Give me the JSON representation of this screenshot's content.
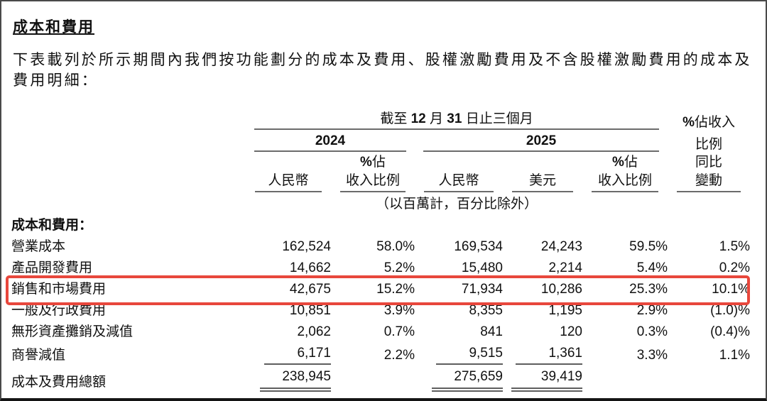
{
  "page": {
    "title": "成本和費用",
    "intro": "下表載列於所示期間內我們按功能劃分的成本及費用、股權激勵費用及不含股權激勵費用的成本及費用明細："
  },
  "table": {
    "spanner": {
      "prefix": "截至 ",
      "month": "12",
      "mid": " 月 ",
      "day": "31",
      "suffix": " 日止三個月"
    },
    "year_left": "2024",
    "year_right": "2025",
    "pct_sym": "%",
    "pct_top": "佔",
    "pct_bottom": "收入比例",
    "rmb": "人民幣",
    "usd": "美元",
    "right_col": {
      "line1_sym": "%",
      "line1": "佔收入",
      "line2": "比例",
      "line3": "同比",
      "line4": "變動"
    },
    "units_note": "（以百萬計，百分比除外）",
    "section_label": "成本和費用：",
    "rows": [
      {
        "label": "營業成本",
        "rmb24": "162,524",
        "pct24": "58.0%",
        "rmb25": "169,534",
        "usd25": "24,243",
        "pct25": "59.5%",
        "yoy": "1.5%"
      },
      {
        "label": "產品開發費用",
        "rmb24": "14,662",
        "pct24": "5.2%",
        "rmb25": "15,480",
        "usd25": "2,214",
        "pct25": "5.4%",
        "yoy": "0.2%"
      },
      {
        "label": "銷售和市場費用",
        "rmb24": "42,675",
        "pct24": "15.2%",
        "rmb25": "71,934",
        "usd25": "10,286",
        "pct25": "25.3%",
        "yoy": "10.1%"
      },
      {
        "label": "一般及行政費用",
        "rmb24": "10,851",
        "pct24": "3.9%",
        "rmb25": "8,355",
        "usd25": "1,195",
        "pct25": "2.9%",
        "yoy": "(1.0)%"
      },
      {
        "label": "無形資產攤銷及減值",
        "rmb24": "2,062",
        "pct24": "0.7%",
        "rmb25": "841",
        "usd25": "120",
        "pct25": "0.3%",
        "yoy": "(0.4)%"
      },
      {
        "label": "商譽減值",
        "rmb24": "6,171",
        "pct24": "2.2%",
        "rmb25": "9,515",
        "usd25": "1,361",
        "pct25": "3.3%",
        "yoy": "1.1%"
      }
    ],
    "total_row": {
      "label": "成本及費用總額",
      "rmb24": "238,945",
      "rmb25": "275,659",
      "usd25": "39,419"
    }
  },
  "annotation": {
    "type": "red-box",
    "color": "#e8473c",
    "target_row_label": "銷售和市場費用"
  }
}
